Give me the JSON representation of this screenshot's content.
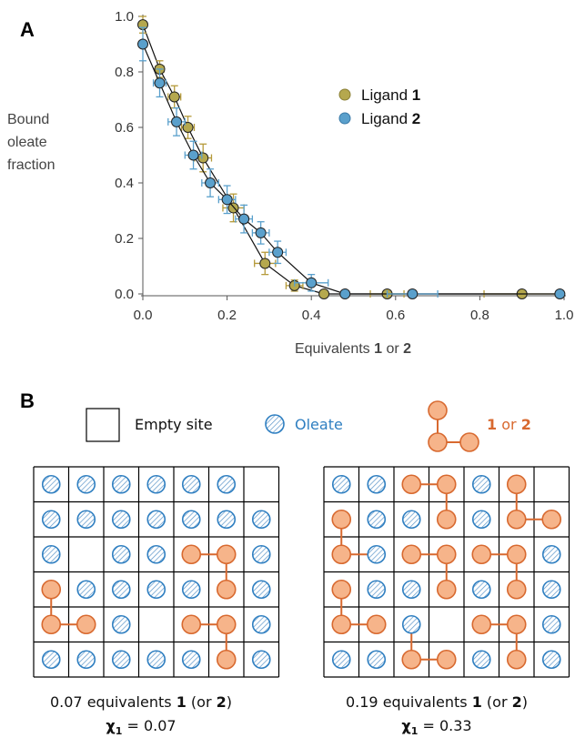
{
  "panel_a": {
    "letter": "A",
    "ylabel_lines": [
      "Bound",
      "oleate",
      "fraction"
    ],
    "xlabel_parts": [
      "Equivalents ",
      "1",
      " or ",
      "2"
    ],
    "legend": [
      {
        "prefix": "Ligand ",
        "num": "1"
      },
      {
        "prefix": "Ligand ",
        "num": "2"
      }
    ]
  },
  "chart_data": {
    "type": "scatter",
    "title": "",
    "xlabel": "Equivalents 1 or 2",
    "ylabel": "Bound oleate fraction",
    "xlim": [
      0,
      1.0
    ],
    "ylim": [
      0,
      1.0
    ],
    "x_ticks": [
      "0.0",
      "0.2",
      "0.4",
      "0.6",
      "0.8",
      "1.0"
    ],
    "y_ticks": [
      "0.0",
      "0.2",
      "0.4",
      "0.6",
      "0.8",
      "1.0"
    ],
    "legend_position": "upper-right",
    "series": [
      {
        "name": "Ligand 1",
        "color": "#b5a84e",
        "error_color": "#b59a3a",
        "line": true,
        "points": [
          {
            "x": 0.0,
            "y": 0.97,
            "xerr": 0.0,
            "yerr": 0.03
          },
          {
            "x": 0.04,
            "y": 0.81,
            "xerr": 0.01,
            "yerr": 0.03
          },
          {
            "x": 0.075,
            "y": 0.71,
            "xerr": 0.015,
            "yerr": 0.04
          },
          {
            "x": 0.107,
            "y": 0.6,
            "xerr": 0.015,
            "yerr": 0.04
          },
          {
            "x": 0.143,
            "y": 0.49,
            "xerr": 0.02,
            "yerr": 0.05
          },
          {
            "x": 0.215,
            "y": 0.31,
            "xerr": 0.025,
            "yerr": 0.05
          },
          {
            "x": 0.29,
            "y": 0.11,
            "xerr": 0.025,
            "yerr": 0.04
          },
          {
            "x": 0.36,
            "y": 0.03,
            "xerr": 0.02,
            "yerr": 0.02
          },
          {
            "x": 0.43,
            "y": 0.0,
            "xerr": 0.0,
            "yerr": 0.0
          },
          {
            "x": 0.58,
            "y": 0.0,
            "xerr": 0.04,
            "yerr": 0.0
          },
          {
            "x": 0.9,
            "y": 0.0,
            "xerr": 0.09,
            "yerr": 0.0
          }
        ]
      },
      {
        "name": "Ligand 2",
        "color": "#5aa0cc",
        "error_color": "#5aa0cc",
        "line": true,
        "points": [
          {
            "x": 0.0,
            "y": 0.9,
            "xerr": 0.0,
            "yerr": 0.06
          },
          {
            "x": 0.04,
            "y": 0.76,
            "xerr": 0.015,
            "yerr": 0.05
          },
          {
            "x": 0.08,
            "y": 0.62,
            "xerr": 0.02,
            "yerr": 0.05
          },
          {
            "x": 0.12,
            "y": 0.5,
            "xerr": 0.02,
            "yerr": 0.05
          },
          {
            "x": 0.16,
            "y": 0.4,
            "xerr": 0.02,
            "yerr": 0.05
          },
          {
            "x": 0.2,
            "y": 0.34,
            "xerr": 0.02,
            "yerr": 0.05
          },
          {
            "x": 0.24,
            "y": 0.27,
            "xerr": 0.02,
            "yerr": 0.05
          },
          {
            "x": 0.28,
            "y": 0.22,
            "xerr": 0.02,
            "yerr": 0.04
          },
          {
            "x": 0.32,
            "y": 0.15,
            "xerr": 0.02,
            "yerr": 0.04
          },
          {
            "x": 0.4,
            "y": 0.04,
            "xerr": 0.04,
            "yerr": 0.03
          },
          {
            "x": 0.48,
            "y": 0.0,
            "xerr": 0.0,
            "yerr": 0.0
          },
          {
            "x": 0.64,
            "y": 0.0,
            "xerr": 0.06,
            "yerr": 0.0
          },
          {
            "x": 0.99,
            "y": 0.0,
            "xerr": 0.0,
            "yerr": 0.0
          }
        ]
      }
    ]
  },
  "panel_b": {
    "letter": "B",
    "legend": {
      "empty_label": "Empty site",
      "oleate_label": "Oleate",
      "ligand_parts": [
        "1",
        " or ",
        "2"
      ]
    },
    "colors": {
      "oleate_stroke": "#2f7fc1",
      "oleate_text": "#2f7fc1",
      "ligand_fill": "#f6b48a",
      "ligand_stroke": "#d8692f",
      "ligand_text": "#d8692f",
      "grid": "#000000"
    },
    "grids": [
      {
        "caption_line1": [
          "0.07 equivalents ",
          "1",
          " (or ",
          "2",
          ")"
        ],
        "chi_symbol": "χ",
        "chi_sub": "1",
        "chi_value": " = 0.07",
        "cells": [
          "OOOOOOE",
          "OOOOOOO",
          "OEOOLLO",
          "LOOOOLO",
          "LLOELLO",
          "OOOOOLO"
        ],
        "bonds": [
          [
            [
              3,
              0
            ],
            [
              4,
              0
            ]
          ],
          [
            [
              4,
              0
            ],
            [
              4,
              1
            ]
          ],
          [
            [
              2,
              4
            ],
            [
              2,
              5
            ]
          ],
          [
            [
              2,
              5
            ],
            [
              3,
              5
            ]
          ],
          [
            [
              4,
              4
            ],
            [
              4,
              5
            ]
          ],
          [
            [
              4,
              5
            ],
            [
              5,
              5
            ]
          ]
        ]
      },
      {
        "caption_line1": [
          "0.19 equivalents ",
          "1",
          " (or ",
          "2",
          ")"
        ],
        "chi_symbol": "χ",
        "chi_sub": "1",
        "chi_value": " = 0.33",
        "cells": [
          "OOLLOLE",
          "LOOLOLL",
          "LOLLLLO",
          "LOOLOLO",
          "LLOELLO",
          "OOLLOLO"
        ],
        "bonds": [
          [
            [
              0,
              2
            ],
            [
              0,
              3
            ]
          ],
          [
            [
              0,
              3
            ],
            [
              1,
              3
            ]
          ],
          [
            [
              0,
              5
            ],
            [
              1,
              5
            ]
          ],
          [
            [
              1,
              5
            ],
            [
              1,
              6
            ]
          ],
          [
            [
              1,
              0
            ],
            [
              2,
              0
            ]
          ],
          [
            [
              2,
              0
            ],
            [
              2,
              1
            ]
          ],
          [
            [
              2,
              2
            ],
            [
              2,
              3
            ]
          ],
          [
            [
              2,
              3
            ],
            [
              3,
              3
            ]
          ],
          [
            [
              2,
              4
            ],
            [
              2,
              5
            ]
          ],
          [
            [
              2,
              5
            ],
            [
              3,
              5
            ]
          ],
          [
            [
              3,
              0
            ],
            [
              4,
              0
            ]
          ],
          [
            [
              4,
              0
            ],
            [
              4,
              1
            ]
          ],
          [
            [
              4,
              2
            ],
            [
              5,
              2
            ]
          ],
          [
            [
              5,
              2
            ],
            [
              5,
              3
            ]
          ],
          [
            [
              4,
              4
            ],
            [
              4,
              5
            ]
          ],
          [
            [
              4,
              5
            ],
            [
              5,
              5
            ]
          ]
        ]
      }
    ]
  }
}
